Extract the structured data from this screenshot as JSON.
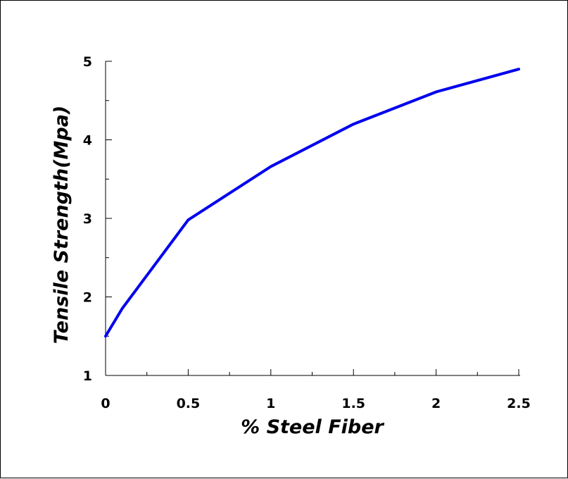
{
  "chart_data": {
    "type": "line",
    "title": "",
    "xlabel": "% Steel Fiber",
    "ylabel": "Tensile Strength(Mpa)",
    "xlim": [
      0,
      2.5
    ],
    "ylim": [
      1,
      5
    ],
    "x_ticks": [
      "0",
      "0.5",
      "1",
      "1.5",
      "2",
      "2.5"
    ],
    "y_ticks": [
      "1",
      "2",
      "3",
      "4",
      "5"
    ],
    "grid": false,
    "series": [
      {
        "color": "#0000ee",
        "x": [
          0,
          0.1,
          0.5,
          1,
          1.5,
          2,
          2.5
        ],
        "y": [
          1.5,
          1.85,
          2.98,
          3.66,
          4.2,
          4.61,
          4.9
        ]
      }
    ]
  }
}
